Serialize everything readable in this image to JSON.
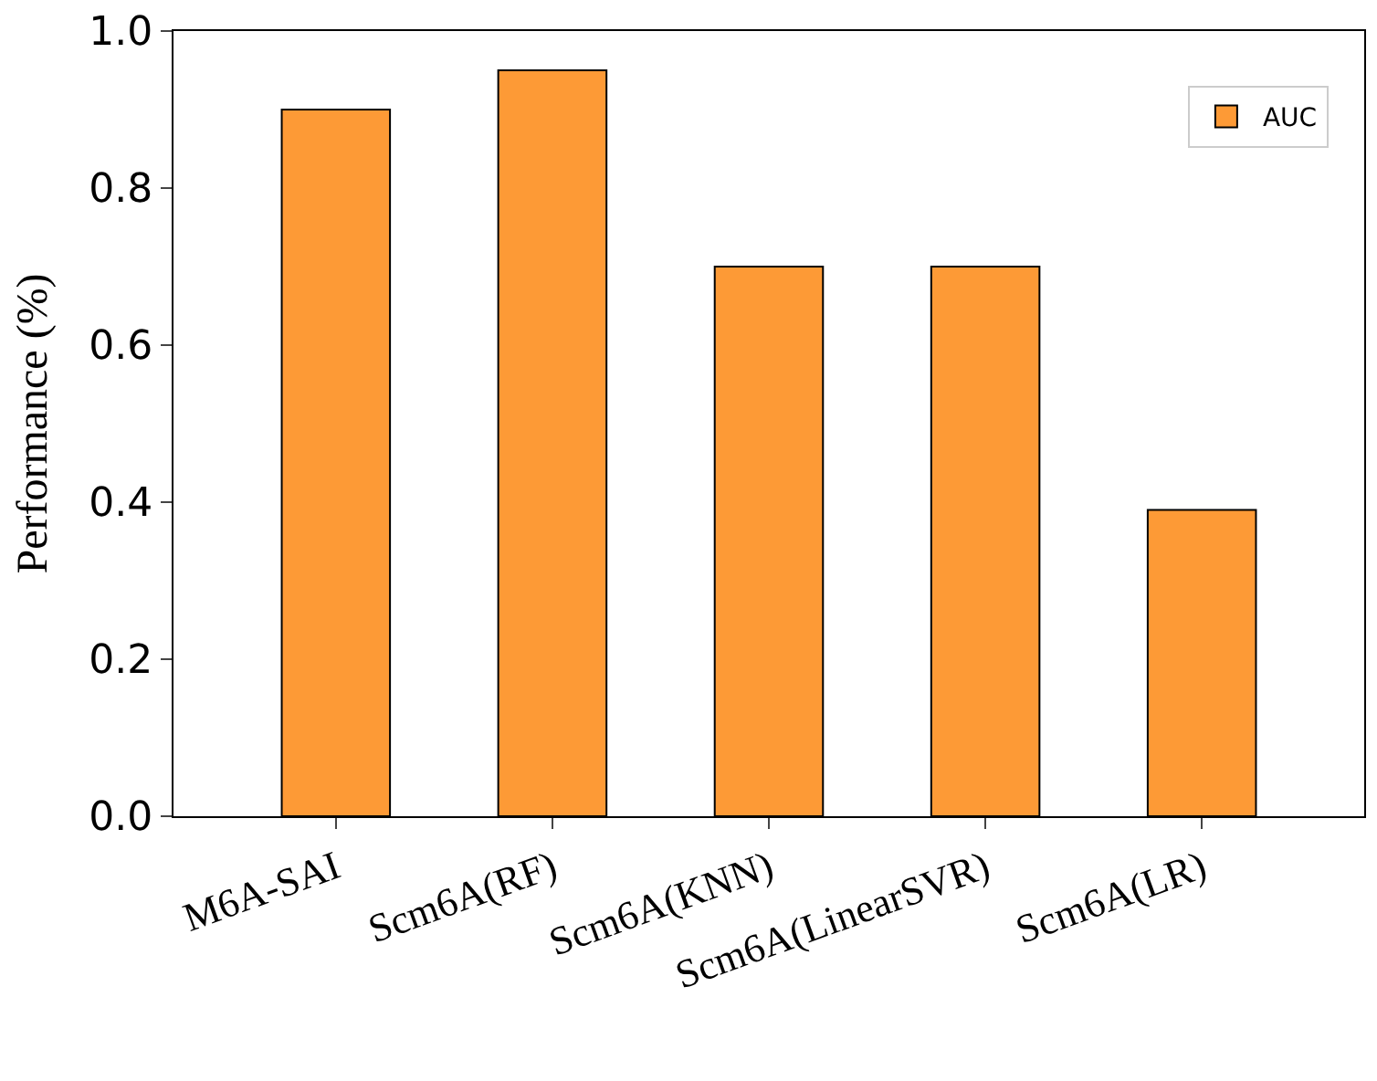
{
  "chart_data": {
    "type": "bar",
    "ylabel": "Performance (%)",
    "categories": [
      "M6A-SAI",
      "Scm6A(RF)",
      "Scm6A(KNN)",
      "Scm6A(LinearSVR)",
      "Scm6A(LR)"
    ],
    "series": [
      {
        "name": "AUC",
        "color": "#fd9a36",
        "values": [
          0.9,
          0.95,
          0.7,
          0.7,
          0.39
        ]
      }
    ],
    "ylim": [
      0,
      1.0
    ],
    "yticks": [
      {
        "value": 0,
        "label": "0.0"
      },
      0.2,
      0.4,
      0.6,
      0.8,
      {
        "value": 1,
        "label": "1.0"
      }
    ],
    "legend": "top right"
  }
}
